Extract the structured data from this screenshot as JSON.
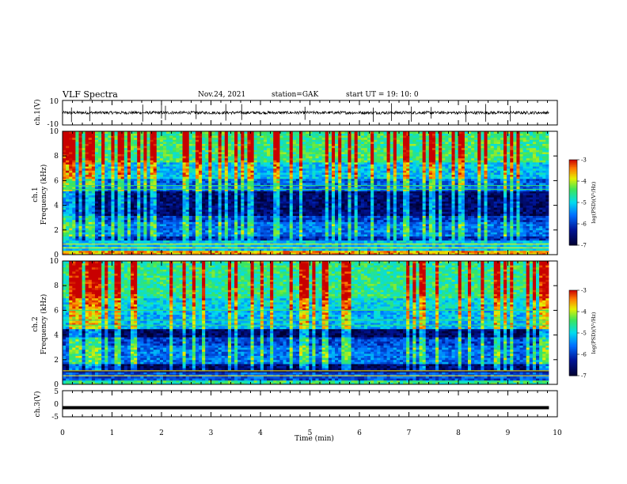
{
  "header": {
    "title": "VLF Spectra",
    "date": "Nov.24, 2021",
    "station": "station=GAK",
    "start_time": "start  UT =   19: 10: 0"
  },
  "chart_data": [
    {
      "type": "line",
      "name": "waveform-ch1",
      "ylabel": "ch.1(V)",
      "ylim": [
        -10,
        10
      ],
      "yticklabels": [
        "10",
        "-10"
      ],
      "x_range": [
        0,
        9.83
      ],
      "baseline_level": 0,
      "noise_amplitude": 1.2,
      "spike_times": [
        0.18,
        0.55,
        1.62,
        2.0,
        2.08,
        2.7,
        3.3,
        3.62,
        4.9,
        6.28,
        6.65,
        7.05,
        7.45,
        8.15,
        8.55,
        9.05
      ]
    },
    {
      "type": "heatmap",
      "name": "spectrogram-ch1",
      "ylabel": "ch.1\nFrequency (kHz)",
      "ylim": [
        0,
        10
      ],
      "yticklabels": [
        "0",
        "2",
        "4",
        "6",
        "8",
        "10"
      ],
      "x_range": [
        0,
        9.83
      ],
      "colorbar": {
        "label": "log(PSD)(V²/Hz)",
        "range": [
          -7,
          -3
        ],
        "ticklabels": [
          "-3",
          "-4",
          "-5",
          "-6",
          "-7"
        ]
      },
      "bands_khz": [
        {
          "from": 0,
          "to": 0.3,
          "level": -3.6
        },
        {
          "from": 0.3,
          "to": 1.1,
          "level": -5.1
        },
        {
          "from": 1.1,
          "to": 1.5,
          "level": -6.2
        },
        {
          "from": 1.5,
          "to": 2.6,
          "level": -5.6
        },
        {
          "from": 2.6,
          "to": 3.2,
          "level": -6.0
        },
        {
          "from": 3.2,
          "to": 5.2,
          "level": -6.6
        },
        {
          "from": 5.2,
          "to": 6.2,
          "level": -5.7
        },
        {
          "from": 6.2,
          "to": 7.5,
          "level": -5.1
        },
        {
          "from": 7.5,
          "to": 10,
          "level": -4.5
        }
      ],
      "lines_khz": [
        0.55,
        0.85,
        5.3,
        5.6
      ]
    },
    {
      "type": "heatmap",
      "name": "spectrogram-ch2",
      "ylabel": "ch.2\nFrequency (kHz)",
      "ylim": [
        0,
        10
      ],
      "yticklabels": [
        "0",
        "2",
        "4",
        "6",
        "8",
        "10"
      ],
      "x_range": [
        0,
        9.83
      ],
      "colorbar": {
        "label": "log(PSD)(V²/Hz)",
        "range": [
          -7,
          -3
        ],
        "ticklabels": [
          "-3",
          "-4",
          "-5",
          "-6",
          "-7"
        ]
      },
      "bands_khz": [
        {
          "from": 0,
          "to": 0.4,
          "level": -4.6
        },
        {
          "from": 0.4,
          "to": 1.0,
          "level": -5.8
        },
        {
          "from": 1.0,
          "to": 1.7,
          "level": -6.6
        },
        {
          "from": 1.7,
          "to": 3.2,
          "level": -5.6
        },
        {
          "from": 3.2,
          "to": 3.8,
          "level": -5.9
        },
        {
          "from": 3.8,
          "to": 4.5,
          "level": -6.7
        },
        {
          "from": 4.5,
          "to": 6.0,
          "level": -5.2
        },
        {
          "from": 6.0,
          "to": 7.0,
          "level": -5.0
        },
        {
          "from": 7.0,
          "to": 10,
          "level": -4.6
        }
      ],
      "lines_khz": [
        0.7,
        1.1,
        4.8,
        5.2,
        6.0
      ]
    },
    {
      "type": "line",
      "name": "waveform-ch3",
      "ylabel": "ch.3(V)",
      "ylim": [
        -5,
        5
      ],
      "yticklabels": [
        "5",
        "0",
        "-5"
      ],
      "x_range": [
        0,
        9.83
      ],
      "baseline_level": -1.5,
      "noise_amplitude": 0.1
    }
  ],
  "x_axis": {
    "label": "Time (min)",
    "range": [
      0,
      10
    ],
    "ticklabels": [
      "0",
      "1",
      "2",
      "3",
      "4",
      "5",
      "6",
      "7",
      "8",
      "9",
      "10"
    ]
  }
}
